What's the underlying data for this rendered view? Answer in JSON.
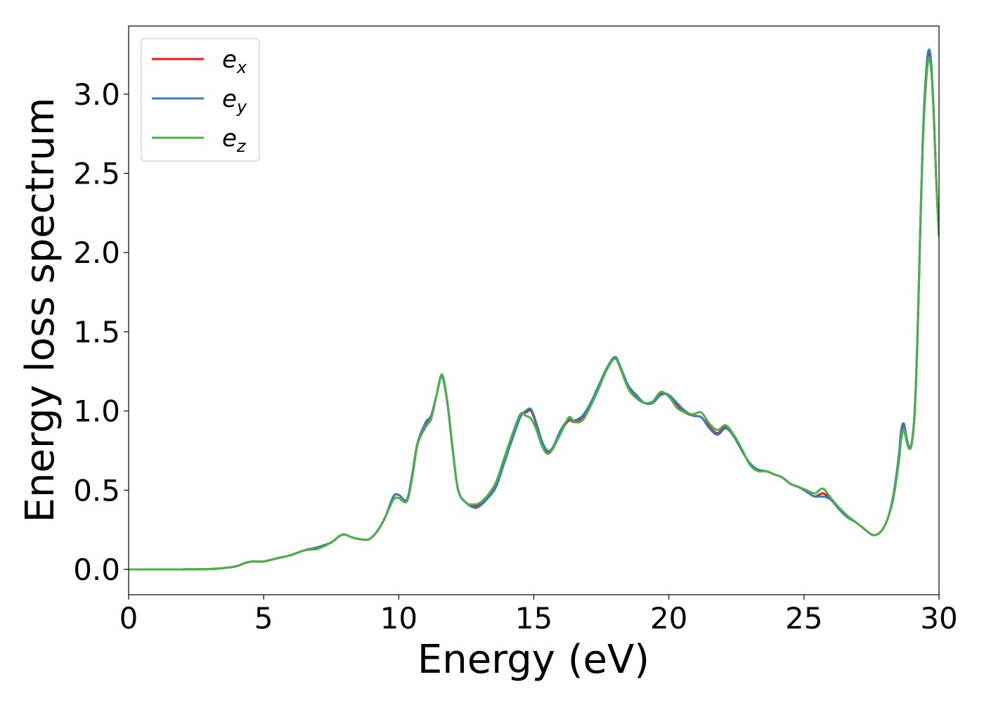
{
  "chart_data": {
    "type": "line",
    "title": "",
    "xlabel": "Energy (eV)",
    "ylabel": "Energy loss spectrum",
    "xlim": [
      0,
      30
    ],
    "ylim": [
      -0.16,
      3.43
    ],
    "xticks": [
      0,
      5,
      10,
      15,
      20,
      25,
      30
    ],
    "yticks": [
      0.0,
      0.5,
      1.0,
      1.5,
      2.0,
      2.5,
      3.0
    ],
    "xtick_labels": [
      "0",
      "5",
      "10",
      "15",
      "20",
      "25",
      "30"
    ],
    "ytick_labels": [
      "0.0",
      "0.5",
      "1.0",
      "1.5",
      "2.0",
      "2.5",
      "3.0"
    ],
    "grid": false,
    "legend_position": "top-left",
    "series": [
      {
        "name": "e_x",
        "legend_base": "e",
        "legend_sub": "x",
        "color": "#e41a1c",
        "x": [
          0,
          1,
          2,
          3,
          3.5,
          4.0,
          4.3,
          4.6,
          5.0,
          5.5,
          6.0,
          6.5,
          7.0,
          7.5,
          7.8,
          8.0,
          8.3,
          8.6,
          8.9,
          9.2,
          9.5,
          9.8,
          10.0,
          10.3,
          10.5,
          10.7,
          11.0,
          11.2,
          11.4,
          11.6,
          11.8,
          12.0,
          12.2,
          12.5,
          12.8,
          13.0,
          13.3,
          13.6,
          13.9,
          14.2,
          14.5,
          14.7,
          14.9,
          15.1,
          15.3,
          15.5,
          15.7,
          16.0,
          16.3,
          16.5,
          16.8,
          17.1,
          17.4,
          17.7,
          18.0,
          18.2,
          18.5,
          18.8,
          19.1,
          19.4,
          19.7,
          20.0,
          20.3,
          20.6,
          20.9,
          21.2,
          21.5,
          21.8,
          22.1,
          22.4,
          22.7,
          23.0,
          23.3,
          23.6,
          23.9,
          24.2,
          24.5,
          24.8,
          25.1,
          25.4,
          25.7,
          26.0,
          26.3,
          26.6,
          26.9,
          27.2,
          27.5,
          27.7,
          27.9,
          28.1,
          28.3,
          28.5,
          28.6,
          28.7,
          28.8,
          28.9,
          29.0,
          29.1,
          29.2,
          29.3,
          29.4,
          29.5,
          29.6,
          29.7,
          29.8,
          29.9,
          30.0
        ],
        "y": [
          0.0,
          0.0,
          0.0,
          0.002,
          0.008,
          0.02,
          0.04,
          0.05,
          0.05,
          0.07,
          0.09,
          0.12,
          0.14,
          0.17,
          0.21,
          0.22,
          0.2,
          0.19,
          0.19,
          0.24,
          0.33,
          0.46,
          0.47,
          0.44,
          0.6,
          0.8,
          0.92,
          0.97,
          1.1,
          1.22,
          1.05,
          0.75,
          0.5,
          0.42,
          0.4,
          0.41,
          0.46,
          0.53,
          0.68,
          0.83,
          0.97,
          0.99,
          1.0,
          0.91,
          0.8,
          0.74,
          0.76,
          0.87,
          0.94,
          0.93,
          0.96,
          1.04,
          1.15,
          1.26,
          1.34,
          1.28,
          1.15,
          1.09,
          1.05,
          1.06,
          1.11,
          1.1,
          1.04,
          0.99,
          0.97,
          0.96,
          0.9,
          0.86,
          0.9,
          0.84,
          0.75,
          0.67,
          0.63,
          0.62,
          0.6,
          0.58,
          0.54,
          0.52,
          0.49,
          0.46,
          0.48,
          0.44,
          0.38,
          0.33,
          0.3,
          0.26,
          0.22,
          0.22,
          0.25,
          0.32,
          0.45,
          0.68,
          0.85,
          0.91,
          0.83,
          0.77,
          0.81,
          1.0,
          1.45,
          2.1,
          2.7,
          3.05,
          3.25,
          3.2,
          2.9,
          2.45,
          2.1
        ]
      },
      {
        "name": "e_y",
        "legend_base": "e",
        "legend_sub": "y",
        "color": "#377eb8",
        "x": [
          0,
          1,
          2,
          3,
          3.5,
          4.0,
          4.3,
          4.6,
          5.0,
          5.5,
          6.0,
          6.5,
          7.0,
          7.5,
          7.8,
          8.0,
          8.3,
          8.6,
          8.9,
          9.2,
          9.5,
          9.8,
          10.0,
          10.3,
          10.5,
          10.7,
          11.0,
          11.2,
          11.4,
          11.6,
          11.8,
          12.0,
          12.2,
          12.5,
          12.8,
          13.0,
          13.3,
          13.6,
          13.9,
          14.2,
          14.5,
          14.7,
          14.9,
          15.1,
          15.3,
          15.5,
          15.7,
          16.0,
          16.3,
          16.5,
          16.8,
          17.1,
          17.4,
          17.7,
          18.0,
          18.2,
          18.5,
          18.8,
          19.1,
          19.4,
          19.7,
          20.0,
          20.3,
          20.6,
          20.9,
          21.2,
          21.5,
          21.8,
          22.1,
          22.4,
          22.7,
          23.0,
          23.3,
          23.6,
          23.9,
          24.2,
          24.5,
          24.8,
          25.1,
          25.4,
          25.7,
          26.0,
          26.3,
          26.6,
          26.9,
          27.2,
          27.5,
          27.7,
          27.9,
          28.1,
          28.3,
          28.5,
          28.6,
          28.7,
          28.8,
          28.9,
          29.0,
          29.1,
          29.2,
          29.3,
          29.4,
          29.5,
          29.6,
          29.7,
          29.8,
          29.9,
          30.0
        ],
        "y": [
          0.0,
          0.0,
          0.0,
          0.002,
          0.008,
          0.02,
          0.04,
          0.05,
          0.05,
          0.07,
          0.09,
          0.12,
          0.14,
          0.17,
          0.21,
          0.22,
          0.2,
          0.19,
          0.19,
          0.24,
          0.33,
          0.46,
          0.47,
          0.44,
          0.6,
          0.8,
          0.93,
          0.97,
          1.1,
          1.22,
          1.05,
          0.75,
          0.5,
          0.42,
          0.39,
          0.4,
          0.45,
          0.52,
          0.67,
          0.82,
          0.96,
          1.0,
          1.01,
          0.92,
          0.81,
          0.75,
          0.77,
          0.88,
          0.95,
          0.94,
          0.97,
          1.05,
          1.16,
          1.27,
          1.34,
          1.28,
          1.16,
          1.1,
          1.05,
          1.05,
          1.1,
          1.1,
          1.05,
          1.0,
          0.97,
          0.96,
          0.89,
          0.85,
          0.89,
          0.84,
          0.75,
          0.67,
          0.63,
          0.62,
          0.6,
          0.58,
          0.54,
          0.52,
          0.49,
          0.46,
          0.46,
          0.44,
          0.38,
          0.33,
          0.3,
          0.26,
          0.22,
          0.22,
          0.25,
          0.32,
          0.46,
          0.7,
          0.88,
          0.92,
          0.83,
          0.77,
          0.81,
          1.0,
          1.46,
          2.12,
          2.72,
          3.08,
          3.27,
          3.22,
          2.9,
          2.45,
          2.1
        ]
      },
      {
        "name": "e_z",
        "legend_base": "e",
        "legend_sub": "z",
        "color": "#4daf4a",
        "x": [
          0,
          1,
          2,
          3,
          3.5,
          4.0,
          4.3,
          4.6,
          5.0,
          5.5,
          6.0,
          6.5,
          7.0,
          7.5,
          7.8,
          8.0,
          8.3,
          8.6,
          8.9,
          9.2,
          9.5,
          9.8,
          10.0,
          10.3,
          10.5,
          10.7,
          11.0,
          11.2,
          11.4,
          11.6,
          11.8,
          12.0,
          12.2,
          12.5,
          12.8,
          13.0,
          13.3,
          13.6,
          13.9,
          14.2,
          14.5,
          14.7,
          14.9,
          15.1,
          15.3,
          15.5,
          15.7,
          16.0,
          16.3,
          16.5,
          16.8,
          17.1,
          17.4,
          17.7,
          18.0,
          18.2,
          18.5,
          18.8,
          19.1,
          19.4,
          19.7,
          20.0,
          20.3,
          20.6,
          20.9,
          21.2,
          21.5,
          21.8,
          22.1,
          22.4,
          22.7,
          23.0,
          23.3,
          23.6,
          23.9,
          24.2,
          24.5,
          24.8,
          25.1,
          25.4,
          25.7,
          26.0,
          26.3,
          26.6,
          26.9,
          27.2,
          27.5,
          27.7,
          27.9,
          28.1,
          28.3,
          28.5,
          28.6,
          28.7,
          28.8,
          28.9,
          29.0,
          29.1,
          29.2,
          29.3,
          29.4,
          29.5,
          29.6,
          29.7,
          29.8,
          29.9,
          30.0
        ],
        "y": [
          0.0,
          0.0,
          0.0,
          0.002,
          0.008,
          0.02,
          0.04,
          0.05,
          0.05,
          0.07,
          0.09,
          0.12,
          0.13,
          0.17,
          0.21,
          0.22,
          0.2,
          0.19,
          0.19,
          0.24,
          0.33,
          0.44,
          0.45,
          0.43,
          0.58,
          0.79,
          0.9,
          0.95,
          1.1,
          1.23,
          1.06,
          0.76,
          0.5,
          0.42,
          0.41,
          0.42,
          0.47,
          0.55,
          0.7,
          0.85,
          0.98,
          0.97,
          0.95,
          0.88,
          0.78,
          0.73,
          0.76,
          0.86,
          0.96,
          0.93,
          0.94,
          1.03,
          1.14,
          1.26,
          1.33,
          1.27,
          1.14,
          1.08,
          1.05,
          1.06,
          1.12,
          1.09,
          1.02,
          0.99,
          0.98,
          0.99,
          0.92,
          0.88,
          0.91,
          0.85,
          0.76,
          0.66,
          0.62,
          0.62,
          0.6,
          0.58,
          0.54,
          0.52,
          0.5,
          0.48,
          0.51,
          0.45,
          0.39,
          0.34,
          0.3,
          0.26,
          0.22,
          0.22,
          0.25,
          0.32,
          0.44,
          0.66,
          0.82,
          0.88,
          0.81,
          0.76,
          0.8,
          0.98,
          1.42,
          2.08,
          2.68,
          3.02,
          3.21,
          3.17,
          2.88,
          2.44,
          2.1
        ]
      }
    ]
  }
}
